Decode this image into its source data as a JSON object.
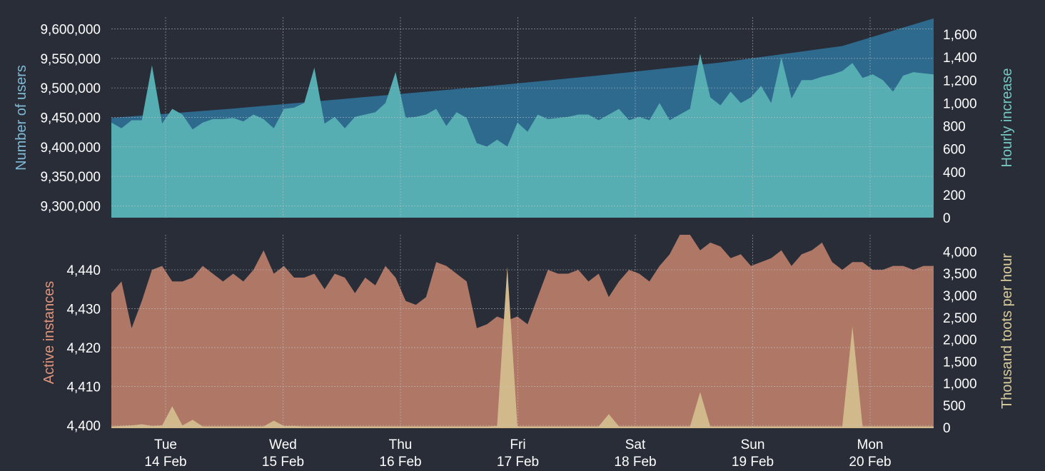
{
  "colors": {
    "background": "#282d38",
    "users_area": "#2e6a8e",
    "hourly_area": "#56adb2",
    "hourly_spike": "#5fa896",
    "instances_area": "#ae7766",
    "toots_area": "#d2b98c",
    "users_label": "#7fbbd7",
    "hourly_label": "#77c9c4",
    "instances_label": "#e0957c",
    "toots_label": "#d9cc9d",
    "tick_text": "#ffffff",
    "grid": "#c9c9c9"
  },
  "days": [
    {
      "weekday": "Tue",
      "date": "14 Feb"
    },
    {
      "weekday": "Wed",
      "date": "15 Feb"
    },
    {
      "weekday": "Thu",
      "date": "16 Feb"
    },
    {
      "weekday": "Fri",
      "date": "17 Feb"
    },
    {
      "weekday": "Sat",
      "date": "18 Feb"
    },
    {
      "weekday": "Sun",
      "date": "19 Feb"
    },
    {
      "weekday": "Mon",
      "date": "20 Feb"
    }
  ],
  "chart_data": [
    {
      "type": "area",
      "x_unit": "hour",
      "x_start": "13 Feb 2023 14:00",
      "x_end": "20 Feb 2023 08:00",
      "grid": true,
      "left_axis": {
        "label": "Number of users",
        "range": [
          9280000,
          9620000
        ],
        "ticks": [
          "9,300,000",
          "9,350,000",
          "9,400,000",
          "9,450,000",
          "9,500,000",
          "9,550,000",
          "9,600,000"
        ],
        "tick_values": [
          9300000,
          9350000,
          9400000,
          9450000,
          9500000,
          9550000,
          9600000
        ]
      },
      "right_axis": {
        "label": "Hourly increase",
        "range": [
          0,
          1750
        ],
        "ticks": [
          "0",
          "200",
          "400",
          "600",
          "800",
          "1,000",
          "1,200",
          "1,400",
          "1,600"
        ],
        "tick_values": [
          0,
          200,
          400,
          600,
          800,
          1000,
          1200,
          1400,
          1600
        ]
      },
      "series": [
        {
          "name": "Number of users",
          "axis": "left",
          "x": [
            0,
            24,
            48,
            72,
            96,
            120,
            144,
            162
          ],
          "values": [
            9449000,
            9465000,
            9483000,
            9501000,
            9521000,
            9543000,
            9571000,
            9618000
          ]
        },
        {
          "name": "Hourly increase",
          "axis": "right",
          "x": [
            0,
            2,
            4,
            6,
            8,
            10,
            12,
            14,
            16,
            18,
            20,
            22,
            24,
            26,
            28,
            30,
            32,
            34,
            36,
            38,
            40,
            42,
            44,
            46,
            48,
            50,
            52,
            54,
            56,
            58,
            60,
            62,
            64,
            66,
            68,
            70,
            72,
            74,
            76,
            78,
            80,
            82,
            84,
            86,
            88,
            90,
            92,
            94,
            96,
            98,
            100,
            102,
            104,
            106,
            108,
            110,
            112,
            114,
            116,
            118,
            120,
            122,
            124,
            126,
            128,
            130,
            132,
            134,
            136,
            138,
            140,
            142,
            144,
            146,
            148,
            150,
            152,
            154,
            156,
            158,
            160,
            162
          ],
          "values": [
            830,
            780,
            850,
            850,
            1330,
            820,
            950,
            900,
            770,
            830,
            860,
            860,
            870,
            840,
            900,
            860,
            780,
            950,
            960,
            1000,
            1310,
            820,
            880,
            780,
            880,
            900,
            920,
            1000,
            1270,
            870,
            880,
            900,
            950,
            800,
            920,
            870,
            650,
            620,
            680,
            620,
            830,
            750,
            900,
            860,
            870,
            880,
            900,
            900,
            850,
            900,
            950,
            850,
            880,
            850,
            1000,
            850,
            900,
            950,
            1430,
            1050,
            980,
            1100,
            1000,
            1050,
            1150,
            1000,
            1400,
            1040,
            1200,
            1200,
            1230,
            1250,
            1280,
            1350,
            1220,
            1250,
            1200,
            1100,
            1240,
            1270,
            1260,
            1250
          ]
        }
      ]
    },
    {
      "type": "area",
      "x_unit": "hour",
      "x_start": "13 Feb 2023 14:00",
      "x_end": "20 Feb 2023 08:00",
      "grid": true,
      "left_axis": {
        "label": "Active instances",
        "range": [
          4399.3,
          4449
        ],
        "ticks": [
          "4,400",
          "4,410",
          "4,420",
          "4,430",
          "4,440"
        ],
        "tick_values": [
          4400,
          4410,
          4420,
          4430,
          4440
        ]
      },
      "right_axis": {
        "label": "Thousand toots per hour",
        "range": [
          -20,
          4380
        ],
        "ticks": [
          "0",
          "500",
          "1,000",
          "1,500",
          "2,000",
          "2,500",
          "3,000",
          "3,500",
          "4,000"
        ],
        "tick_values": [
          0,
          500,
          1000,
          1500,
          2000,
          2500,
          3000,
          3500,
          4000
        ]
      },
      "series": [
        {
          "name": "Active instances",
          "axis": "left",
          "x": [
            0,
            2,
            4,
            6,
            8,
            10,
            12,
            14,
            16,
            18,
            20,
            22,
            24,
            26,
            28,
            30,
            32,
            34,
            36,
            38,
            40,
            42,
            44,
            46,
            48,
            50,
            52,
            54,
            56,
            58,
            60,
            62,
            64,
            66,
            68,
            70,
            72,
            74,
            76,
            78,
            80,
            82,
            84,
            86,
            88,
            90,
            92,
            94,
            96,
            98,
            100,
            102,
            104,
            106,
            108,
            110,
            112,
            114,
            116,
            118,
            120,
            122,
            124,
            126,
            128,
            130,
            132,
            134,
            136,
            138,
            140,
            142,
            144,
            146,
            148,
            150,
            152,
            154,
            156,
            158,
            160,
            162
          ],
          "values": [
            4434,
            4437,
            4425,
            4432,
            4440,
            4441,
            4437,
            4437,
            4438,
            4441,
            4439,
            4437,
            4439,
            4437,
            4440,
            4445,
            4439,
            4441,
            4438,
            4438,
            4439,
            4435,
            4439,
            4438,
            4434,
            4438,
            4436,
            4441,
            4438,
            4432,
            4431,
            4433,
            4442,
            4441,
            4439,
            4437,
            4425,
            4426,
            4428,
            4427,
            4428,
            4426,
            4433,
            4440,
            4439,
            4439,
            4440,
            4437,
            4439,
            4433,
            4437,
            4440,
            4439,
            4437,
            4441,
            4444,
            4449,
            4449,
            4445,
            4447,
            4446,
            4443,
            4444,
            4441,
            4442,
            4443,
            4445,
            4441,
            4444,
            4445,
            4447,
            4442,
            4440,
            4442,
            4442,
            4440,
            4440,
            4441,
            4441,
            4440,
            4441,
            4441
          ]
        },
        {
          "name": "Thousand toots per hour",
          "axis": "right",
          "x": [
            0,
            2,
            4,
            6,
            8,
            10,
            12,
            14,
            16,
            18,
            20,
            22,
            24,
            26,
            28,
            30,
            32,
            34,
            36,
            38,
            40,
            42,
            44,
            46,
            48,
            50,
            52,
            54,
            56,
            58,
            60,
            62,
            64,
            66,
            68,
            70,
            72,
            74,
            76,
            78,
            80,
            82,
            84,
            86,
            88,
            90,
            92,
            94,
            96,
            98,
            100,
            102,
            104,
            106,
            108,
            110,
            112,
            114,
            116,
            118,
            120,
            122,
            124,
            126,
            128,
            130,
            132,
            134,
            136,
            138,
            140,
            142,
            144,
            146,
            148,
            150,
            152,
            154,
            156,
            158,
            160,
            162
          ],
          "values": [
            20,
            30,
            40,
            70,
            30,
            40,
            480,
            40,
            170,
            20,
            20,
            20,
            20,
            20,
            20,
            20,
            150,
            30,
            30,
            20,
            20,
            20,
            20,
            20,
            20,
            20,
            20,
            20,
            20,
            20,
            20,
            20,
            20,
            20,
            20,
            20,
            20,
            20,
            30,
            3650,
            20,
            20,
            20,
            20,
            20,
            20,
            20,
            20,
            20,
            300,
            20,
            20,
            20,
            20,
            20,
            20,
            20,
            20,
            800,
            20,
            20,
            20,
            20,
            20,
            20,
            20,
            20,
            20,
            20,
            20,
            20,
            20,
            20,
            2300,
            20,
            20,
            20,
            20,
            20,
            20,
            20,
            20
          ]
        }
      ]
    }
  ]
}
